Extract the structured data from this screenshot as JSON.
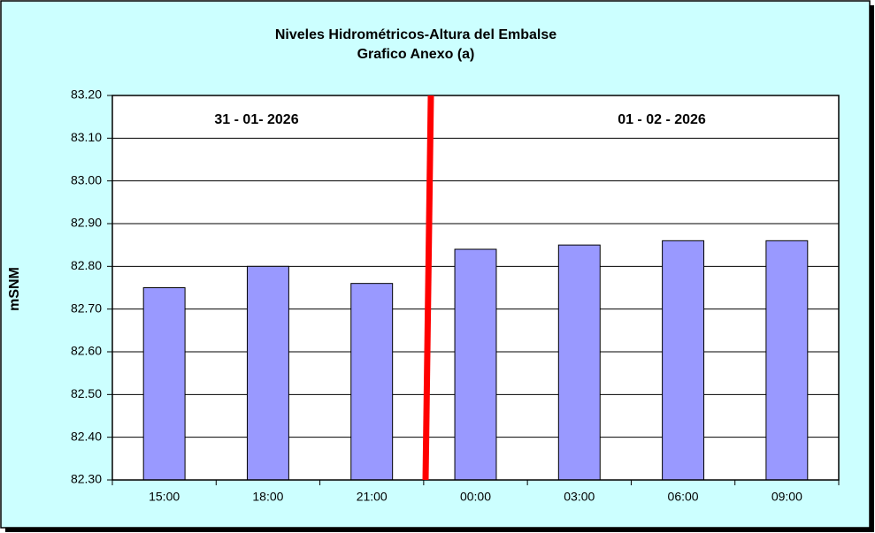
{
  "chart_data": {
    "type": "bar",
    "title": "Niveles Hidrométricos-Altura del Embalse",
    "subtitle": "Grafico Anexo (a)",
    "y_label": "mSNM",
    "annotations": [
      "31 - 01- 2026",
      "01 - 02 - 2026"
    ],
    "categories": [
      "15:00",
      "18:00",
      "21:00",
      "00:00",
      "03:00",
      "06:00",
      "09:00"
    ],
    "values": [
      82.75,
      82.8,
      82.76,
      82.84,
      82.85,
      82.86,
      82.86
    ],
    "color": "#9999ff",
    "ylim": [
      82.3,
      83.2
    ],
    "yticks": [
      {
        "value": 82.3,
        "label": "82.30"
      },
      {
        "value": 82.4,
        "label": "82.40"
      },
      {
        "value": 82.5,
        "label": "82.50"
      },
      {
        "value": 82.6,
        "label": "82.60"
      },
      {
        "value": 82.7,
        "label": "82.70"
      },
      {
        "value": 82.8,
        "label": "82.80"
      },
      {
        "value": 82.9,
        "label": "82.90"
      },
      {
        "value": 83.0,
        "label": "83.00"
      },
      {
        "value": 83.1,
        "label": "83.10"
      },
      {
        "value": 83.2,
        "label": "83.20"
      }
    ],
    "grid": true
  }
}
